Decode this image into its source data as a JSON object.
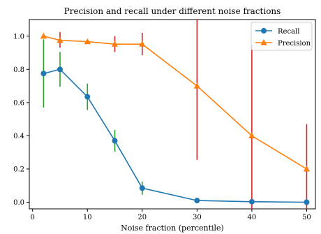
{
  "chart_data": {
    "type": "line",
    "title": "Precision and recall under different noise fractions",
    "xlabel": "Noise fraction (percentile)",
    "ylabel": "",
    "xlim": [
      -0.6,
      51.6
    ],
    "ylim": [
      -0.04,
      1.1
    ],
    "xticks": [
      0,
      10,
      20,
      30,
      40,
      50
    ],
    "yticks": [
      0.0,
      0.2,
      0.4,
      0.6,
      0.8,
      1.0
    ],
    "xtick_labels": [
      "0",
      "10",
      "20",
      "30",
      "40",
      "50"
    ],
    "ytick_labels": [
      "0.0",
      "0.2",
      "0.4",
      "0.6",
      "0.8",
      "1.0"
    ],
    "legend_position": "top-right",
    "grid": false,
    "x": [
      2,
      5,
      10,
      15,
      20,
      30,
      40,
      50
    ],
    "series": [
      {
        "name": "Recall",
        "color": "#1f77b4",
        "marker": "circle",
        "errorbar_color": "#2ca02c",
        "values": [
          0.775,
          0.8,
          0.635,
          0.37,
          0.085,
          0.01,
          0.003,
          0.0
        ],
        "err_low": [
          0.57,
          0.695,
          0.555,
          0.305,
          0.045,
          0.01,
          0.003,
          0.0
        ],
        "err_high": [
          0.98,
          0.905,
          0.715,
          0.435,
          0.125,
          0.01,
          0.003,
          0.0
        ]
      },
      {
        "name": "Precision",
        "color": "#ff7f0e",
        "marker": "triangle",
        "errorbar_color": "#d62728",
        "values": [
          1.0,
          0.975,
          0.967,
          0.952,
          0.952,
          0.7,
          0.4,
          0.2
        ],
        "err_low": [
          1.0,
          0.93,
          0.967,
          0.905,
          0.885,
          0.255,
          -0.15,
          -0.07
        ],
        "err_high": [
          1.0,
          1.025,
          0.967,
          1.0,
          1.02,
          1.15,
          0.945,
          0.47
        ]
      }
    ]
  }
}
